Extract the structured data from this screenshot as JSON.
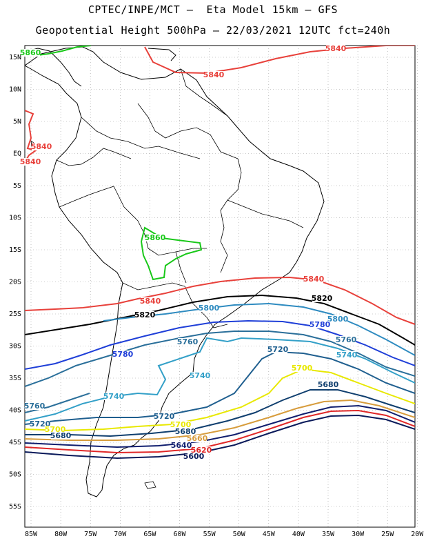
{
  "title": {
    "line1": "CPTEC/INPE/MCT –  Eta Model 15km – GFS",
    "line2": "Geopotential Height 500hPa – 22/03/2021 12UTC fct=240h"
  },
  "lat_labels": [
    "15N",
    "10N",
    "5N",
    "EQ",
    "5S",
    "10S",
    "15S",
    "20S",
    "25S",
    "30S",
    "35S",
    "40S",
    "45S",
    "50S",
    "55S"
  ],
  "lon_labels": [
    "85W",
    "80W",
    "75W",
    "70W",
    "65W",
    "60W",
    "55W",
    "50W",
    "45W",
    "40W",
    "35W",
    "30W",
    "25W",
    "20W"
  ],
  "contours": [
    {
      "level": "5860",
      "color": "#19c819",
      "labels": [
        "5860",
        "5860"
      ]
    },
    {
      "level": "5840",
      "color": "#e8413b",
      "labels": [
        "5840",
        "5840",
        "5840",
        "5840",
        "5840",
        "5840"
      ]
    },
    {
      "level": "5820",
      "color": "#000000",
      "labels": [
        "5820",
        "5820"
      ]
    },
    {
      "level": "5800",
      "color": "#2e8bc0",
      "labels": [
        "5800",
        "5800"
      ]
    },
    {
      "level": "5780",
      "color": "#1f3fd8",
      "labels": [
        "5780",
        "5780"
      ]
    },
    {
      "level": "5760",
      "color": "#2a6f9a",
      "labels": [
        "5760",
        "5760",
        "5760"
      ]
    },
    {
      "level": "5740",
      "color": "#33a0c8",
      "labels": [
        "5740",
        "5740",
        "5740"
      ]
    },
    {
      "level": "5720",
      "color": "#1f5f8f",
      "labels": [
        "5720",
        "5720",
        "5720"
      ]
    },
    {
      "level": "5700",
      "color": "#e8e800",
      "labels": [
        "5700",
        "5700",
        "5700"
      ]
    },
    {
      "level": "5680",
      "color": "#0f3e6e",
      "labels": [
        "5680",
        "5680",
        "5680"
      ]
    },
    {
      "level": "5660",
      "color": "#d79c3c",
      "labels": [
        "5660"
      ]
    },
    {
      "level": "5640",
      "color": "#101e6e",
      "labels": [
        "5640"
      ]
    },
    {
      "level": "5620",
      "color": "#e02828",
      "labels": [
        "5620"
      ]
    },
    {
      "level": "5600",
      "color": "#0a1a5a",
      "labels": [
        "5600"
      ]
    }
  ]
}
